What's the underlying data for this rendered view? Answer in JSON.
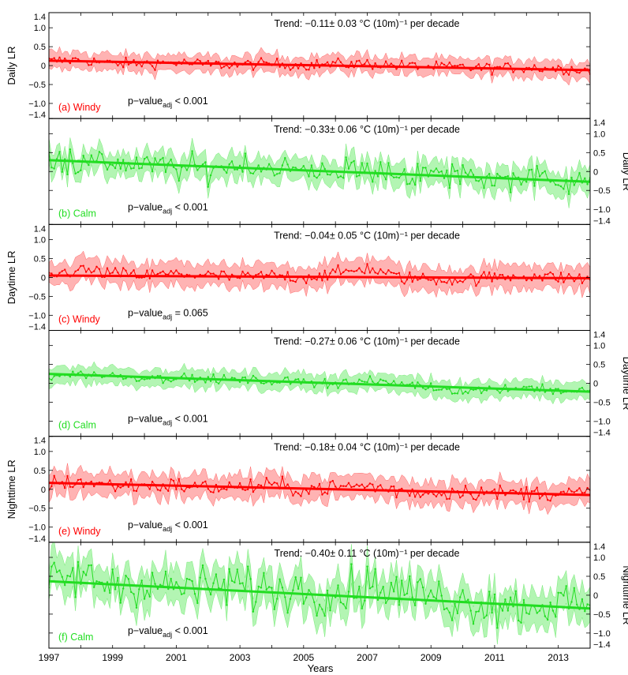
{
  "figure": {
    "xlabel": "Years"
  },
  "chart_data": [
    {
      "type": "line",
      "panel_label": "(a) Windy",
      "ylabel": "Daily LR",
      "yaxis_side": "left",
      "color": "#ff0000",
      "fill_color": "#ffb3b3",
      "trend_text": "Trend: −0.11± 0.03 °C (10m)⁻¹ per decade",
      "pvalue_text": "p−value",
      "pvalue_sub": "adj",
      "pvalue_rest": " < 0.001",
      "xlim": [
        1997,
        2014
      ],
      "ylim": [
        -1.4,
        1.4
      ],
      "yticks": [
        -1.4,
        -1.0,
        -0.5,
        0,
        0.5,
        1.0,
        1.4
      ],
      "yticklabels": [
        "−1.4",
        "−1.0",
        "−0.5",
        "0",
        "0.5",
        "1.0",
        "1.4"
      ],
      "trend": {
        "start": 0.13,
        "end": -0.12
      },
      "series": {
        "x": [
          1997,
          1998,
          1999,
          2000,
          2001,
          2002,
          2003,
          2004,
          2005,
          2006,
          2007,
          2008,
          2009,
          2010,
          2011,
          2012,
          2013,
          2014
        ],
        "y": [
          0.12,
          0.15,
          0.05,
          0.06,
          0.08,
          0.03,
          0.02,
          0.05,
          0.01,
          0.04,
          0.05,
          0.0,
          -0.03,
          -0.05,
          -0.07,
          -0.05,
          -0.08,
          -0.12
        ],
        "noise": 0.1,
        "band": 0.22
      }
    },
    {
      "type": "line",
      "panel_label": "(b) Calm",
      "ylabel": "Daily LR",
      "yaxis_side": "right",
      "color": "#22dd22",
      "fill_color": "#b3f5b3",
      "trend_text": "Trend: −0.33± 0.06 °C (10m)⁻¹ per decade",
      "pvalue_text": "p−value",
      "pvalue_sub": "adj",
      "pvalue_rest": " < 0.001",
      "xlim": [
        1997,
        2014
      ],
      "ylim": [
        -1.4,
        1.4
      ],
      "yticks": [
        -1.4,
        -1.0,
        -0.5,
        0,
        0.5,
        1.0,
        1.4
      ],
      "yticklabels": [
        "−1.4",
        "−1.0",
        "−0.5",
        "0",
        "0.5",
        "1.0",
        "1.4"
      ],
      "trend": {
        "start": 0.3,
        "end": -0.27
      },
      "series": {
        "x": [
          1997,
          1998,
          1999,
          2000,
          2001,
          2002,
          2003,
          2004,
          2005,
          2006,
          2007,
          2008,
          2009,
          2010,
          2011,
          2012,
          2013,
          2014
        ],
        "y": [
          0.45,
          0.2,
          0.25,
          0.15,
          0.1,
          0.05,
          0.2,
          0.1,
          0.0,
          0.05,
          0.0,
          -0.05,
          -0.1,
          -0.1,
          -0.2,
          -0.15,
          -0.2,
          -0.25
        ],
        "noise": 0.25,
        "band": 0.3
      }
    },
    {
      "type": "line",
      "panel_label": "(c) Windy",
      "ylabel": "Daytime LR",
      "yaxis_side": "left",
      "color": "#ff0000",
      "fill_color": "#ffb3b3",
      "trend_text": "Trend: −0.04± 0.05 °C (10m)⁻¹ per decade",
      "pvalue_text": "p−value",
      "pvalue_sub": "adj",
      "pvalue_rest": " = 0.065",
      "xlim": [
        1997,
        2014
      ],
      "ylim": [
        -1.4,
        1.4
      ],
      "yticks": [
        -1.4,
        -1.0,
        -0.5,
        0,
        0.5,
        1.0,
        1.4
      ],
      "yticklabels": [
        "−1.4",
        "−1.0",
        "−0.5",
        "0",
        "0.5",
        "1.0",
        "1.4"
      ],
      "trend": {
        "start": 0.05,
        "end": -0.02
      },
      "series": {
        "x": [
          1997,
          1998,
          1999,
          2000,
          2001,
          2002,
          2003,
          2004,
          2005,
          2006,
          2007,
          2008,
          2009,
          2010,
          2011,
          2012,
          2013,
          2014
        ],
        "y": [
          0.05,
          0.2,
          0.1,
          0.05,
          0.1,
          0.05,
          0.0,
          0.05,
          0.0,
          0.1,
          0.25,
          0.0,
          -0.05,
          -0.05,
          0.0,
          0.05,
          0.0,
          -0.05
        ],
        "noise": 0.12,
        "band": 0.3
      }
    },
    {
      "type": "line",
      "panel_label": "(d) Calm",
      "ylabel": "Daytime LR",
      "yaxis_side": "right",
      "color": "#22dd22",
      "fill_color": "#b3f5b3",
      "trend_text": "Trend: −0.27± 0.06 °C (10m)⁻¹ per decade",
      "pvalue_text": "p−value",
      "pvalue_sub": "adj",
      "pvalue_rest": " < 0.001",
      "xlim": [
        1997,
        2014
      ],
      "ylim": [
        -1.4,
        1.4
      ],
      "yticks": [
        -1.4,
        -1.0,
        -0.5,
        0,
        0.5,
        1.0,
        1.4
      ],
      "yticklabels": [
        "−1.4",
        "−1.0",
        "−0.5",
        "0",
        "0.5",
        "1.0",
        "1.4"
      ],
      "trend": {
        "start": 0.25,
        "end": -0.22
      },
      "series": {
        "x": [
          1997,
          1998,
          1999,
          2000,
          2001,
          2002,
          2003,
          2004,
          2005,
          2006,
          2007,
          2008,
          2009,
          2010,
          2011,
          2012,
          2013,
          2014
        ],
        "y": [
          0.2,
          0.25,
          0.2,
          0.15,
          0.15,
          0.1,
          0.1,
          0.05,
          0.05,
          0.0,
          0.05,
          0.0,
          -0.1,
          -0.2,
          -0.15,
          -0.1,
          -0.2,
          -0.2
        ],
        "noise": 0.08,
        "band": 0.22
      }
    },
    {
      "type": "line",
      "panel_label": "(e) Windy",
      "ylabel": "Nighttime LR",
      "yaxis_side": "left",
      "color": "#ff0000",
      "fill_color": "#ffb3b3",
      "trend_text": "Trend: −0.18± 0.04 °C (10m)⁻¹ per decade",
      "pvalue_text": "p−value",
      "pvalue_sub": "adj",
      "pvalue_rest": " < 0.001",
      "xlim": [
        1997,
        2014
      ],
      "ylim": [
        -1.4,
        1.4
      ],
      "yticks": [
        -1.4,
        -1.0,
        -0.5,
        0,
        0.5,
        1.0,
        1.4
      ],
      "yticklabels": [
        "−1.4",
        "−1.0",
        "−0.5",
        "0",
        "0.5",
        "1.0",
        "1.4"
      ],
      "trend": {
        "start": 0.17,
        "end": -0.15
      },
      "series": {
        "x": [
          1997,
          1998,
          1999,
          2000,
          2001,
          2002,
          2003,
          2004,
          2005,
          2006,
          2007,
          2008,
          2009,
          2010,
          2011,
          2012,
          2013,
          2014
        ],
        "y": [
          0.15,
          0.2,
          0.1,
          0.1,
          0.1,
          0.05,
          0.05,
          0.1,
          0.0,
          0.05,
          0.1,
          -0.05,
          -0.1,
          -0.05,
          -0.1,
          -0.1,
          -0.1,
          -0.1
        ],
        "noise": 0.15,
        "band": 0.3
      }
    },
    {
      "type": "line",
      "panel_label": "(f) Calm",
      "ylabel": "Nighttime LR",
      "yaxis_side": "right",
      "color": "#22dd22",
      "fill_color": "#b3f5b3",
      "trend_text": "Trend: −0.40± 0.11 °C (10m)⁻¹ per decade",
      "pvalue_text": "p−value",
      "pvalue_sub": "adj",
      "pvalue_rest": " < 0.001",
      "xlim": [
        1997,
        2014
      ],
      "ylim": [
        -1.4,
        1.4
      ],
      "yticks": [
        -1.4,
        -1.0,
        -0.5,
        0,
        0.5,
        1.0,
        1.4
      ],
      "yticklabels": [
        "−1.4",
        "−1.0",
        "−0.5",
        "0",
        "0.5",
        "1.0",
        "1.4"
      ],
      "xticks": [
        1997,
        1999,
        2001,
        2003,
        2005,
        2007,
        2009,
        2011,
        2013
      ],
      "trend": {
        "start": 0.37,
        "end": -0.35
      },
      "series": {
        "x": [
          1997,
          1998,
          1999,
          2000,
          2001,
          2002,
          2003,
          2004,
          2005,
          2006,
          2007,
          2008,
          2009,
          2010,
          2011,
          2012,
          2013,
          2014
        ],
        "y": [
          0.4,
          0.5,
          0.3,
          0.3,
          0.2,
          0.2,
          0.3,
          0.1,
          0.2,
          0.0,
          0.3,
          0.1,
          0.0,
          -0.2,
          -0.2,
          -0.3,
          -0.2,
          -0.3
        ],
        "noise": 0.4,
        "band": 0.45
      }
    }
  ]
}
